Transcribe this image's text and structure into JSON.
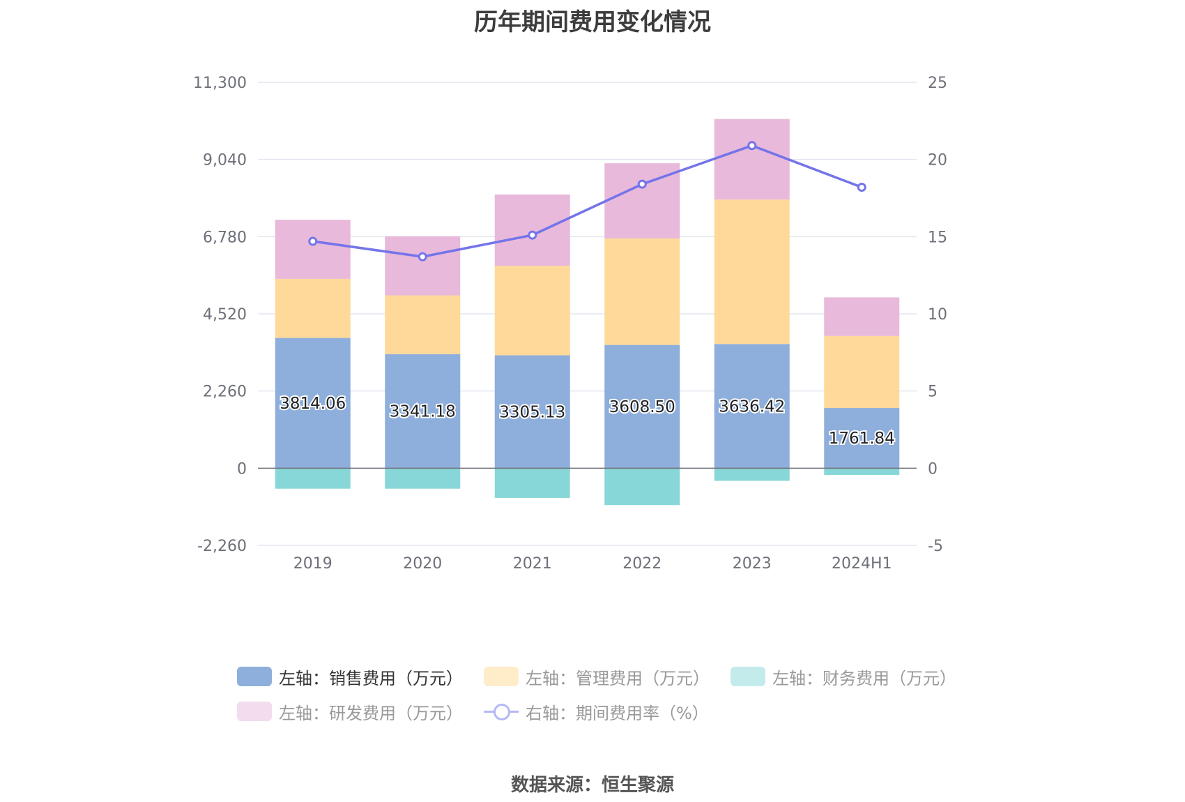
{
  "title": "历年期间费用变化情况",
  "source": "数据来源：恒生聚源",
  "colors": {
    "sales": "#8eaedb",
    "management": "#fed99a",
    "finance": "#88d7d8",
    "rnd": "#e8b9da",
    "rate": "#7474ea",
    "grid": "#e3e6ef",
    "axis": "#6e7079"
  },
  "legend": {
    "sales": "左轴：销售费用（万元）",
    "management": "左轴：管理费用（万元）",
    "finance": "左轴：财务费用（万元）",
    "rnd": "左轴：研发费用（万元）",
    "rate": "右轴：期间费用率（%）"
  },
  "chart_data": {
    "type": "bar",
    "stacked": true,
    "categories": [
      "2019",
      "2020",
      "2021",
      "2022",
      "2023",
      "2024H1"
    ],
    "left_axis": {
      "ylim": [
        -2260,
        11300
      ],
      "ticks": [
        "-2,260",
        "0",
        "2,260",
        "4,520",
        "6,780",
        "9,040",
        "11,300"
      ],
      "tick_values": [
        -2260,
        0,
        2260,
        4520,
        6780,
        9040,
        11300
      ]
    },
    "right_axis": {
      "ylim": [
        -5,
        25
      ],
      "ticks": [
        "-5",
        "0",
        "5",
        "10",
        "15",
        "20",
        "25"
      ],
      "tick_values": [
        -5,
        0,
        5,
        10,
        15,
        20,
        25
      ]
    },
    "series": [
      {
        "name": "左轴：销售费用（万元）",
        "key": "sales",
        "axis": "left",
        "type": "bar",
        "values": [
          3814.06,
          3341.18,
          3305.13,
          3608.5,
          3636.42,
          1761.84
        ],
        "labels": [
          "3814.06",
          "3341.18",
          "3305.13",
          "3608.50",
          "3636.42",
          "1761.84"
        ]
      },
      {
        "name": "左轴：管理费用（万元）",
        "key": "management",
        "axis": "left",
        "type": "bar",
        "values": [
          1730,
          1720,
          2620,
          3120,
          4230,
          2110
        ]
      },
      {
        "name": "左轴：研发费用（万元）",
        "key": "rnd",
        "axis": "left",
        "type": "bar",
        "values": [
          1730,
          1730,
          2090,
          2200,
          2360,
          1130
        ]
      },
      {
        "name": "左轴：财务费用（万元）",
        "key": "finance",
        "axis": "left",
        "type": "bar",
        "values": [
          -600,
          -600,
          -870,
          -1080,
          -370,
          -200
        ]
      },
      {
        "name": "右轴：期间费用率（%）",
        "key": "rate",
        "axis": "right",
        "type": "line",
        "values": [
          14.7,
          13.7,
          15.1,
          18.4,
          20.9,
          18.2
        ]
      }
    ],
    "grid": true,
    "legend_position": "bottom"
  }
}
